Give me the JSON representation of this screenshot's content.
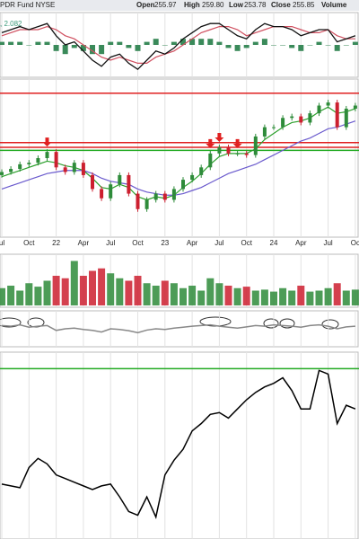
{
  "header": {
    "name": "PDR Fund NYSE",
    "open_label": "Open",
    "open": "255.97",
    "high_label": "High",
    "high": "259.80",
    "low_label": "Low",
    "low": "253.78",
    "close_label": "Close",
    "close": "255.85",
    "volume_label": "Volume",
    "macd_label": ", 2.082"
  },
  "chart_data": [
    {
      "type": "candlestick",
      "categories": [
        "ul",
        null,
        null,
        "Oct",
        null,
        null,
        "22",
        null,
        null,
        "Apr",
        null,
        null,
        "Jul",
        null,
        null,
        "Oct",
        null,
        null,
        "23",
        null,
        null,
        "Apr",
        null,
        null,
        "Jul",
        null,
        null,
        "Oct",
        null,
        null,
        "24",
        null,
        null,
        "Apr",
        null,
        null,
        "Jul",
        null,
        null,
        "Oc"
      ],
      "open": [
        39,
        41,
        43,
        46,
        47,
        50,
        54,
        44,
        41,
        47,
        39,
        30,
        24,
        33,
        39,
        27,
        17,
        23,
        27,
        23,
        30,
        36,
        39,
        44,
        53,
        57,
        53,
        53,
        52,
        64,
        70,
        70,
        76,
        77,
        73,
        79,
        84,
        86,
        70,
        82
      ],
      "close": [
        41,
        43,
        46,
        47,
        50,
        54,
        44,
        41,
        47,
        39,
        30,
        24,
        33,
        39,
        27,
        17,
        23,
        27,
        23,
        30,
        36,
        39,
        44,
        53,
        57,
        53,
        53,
        52,
        64,
        70,
        70,
        76,
        77,
        73,
        79,
        84,
        86,
        70,
        82,
        84
      ],
      "up_color": "#2e8b3a",
      "down_color": "#cc1f2f",
      "series": [
        {
          "color": "#2ca02c",
          "values": [
            38,
            40,
            42,
            44,
            46,
            48,
            47,
            45,
            44,
            42,
            37,
            31,
            30,
            33,
            31,
            25,
            23,
            25,
            24,
            26,
            31,
            35,
            40,
            46,
            51,
            53,
            53,
            53,
            56,
            62,
            66,
            70,
            73,
            74,
            76,
            80,
            83,
            79,
            80,
            82
          ]
        },
        {
          "color": "#6a5acd",
          "values": [
            30,
            32,
            34,
            36,
            38,
            40,
            41,
            42,
            42,
            42,
            40,
            37,
            35,
            34,
            33,
            30,
            28,
            27,
            26,
            26,
            27,
            29,
            31,
            34,
            37,
            40,
            42,
            44,
            46,
            49,
            52,
            55,
            58,
            61,
            63,
            66,
            69,
            70,
            72,
            74
          ]
        }
      ],
      "hlines": [
        {
          "value": 92,
          "color": "#e02020"
        },
        {
          "value": 60,
          "color": "#e02020"
        },
        {
          "value": 57,
          "color": "#e02020"
        },
        {
          "value": 55,
          "color": "#22aa22"
        }
      ],
      "arrows": [
        5,
        23,
        24,
        26
      ],
      "arrow_color": "#e02020",
      "ylim": [
        0,
        100
      ]
    },
    {
      "type": "macd",
      "macd": [
        4,
        5,
        6,
        5,
        6,
        7,
        3,
        0,
        1,
        -2,
        -5,
        -7,
        -4,
        -3,
        -6,
        -8,
        -5,
        -2,
        -3,
        -1,
        2,
        4,
        6,
        7,
        7,
        5,
        3,
        2,
        5,
        7,
        6,
        6,
        5,
        3,
        4,
        5,
        5,
        1,
        2,
        3
      ],
      "signal": [
        3,
        4,
        5,
        5,
        5,
        6,
        5,
        3,
        2,
        0,
        -2,
        -4,
        -5,
        -4,
        -5,
        -6,
        -6,
        -4,
        -3,
        -2,
        0,
        2,
        4,
        5,
        6,
        6,
        5,
        3,
        4,
        5,
        6,
        6,
        6,
        5,
        4,
        4,
        5,
        3,
        2,
        2
      ],
      "histogram": [
        1,
        1,
        1,
        0,
        1,
        1,
        -2,
        -3,
        -1,
        -2,
        -3,
        -3,
        1,
        1,
        -1,
        -2,
        1,
        2,
        0,
        1,
        2,
        2,
        2,
        2,
        1,
        -1,
        -2,
        -1,
        1,
        2,
        0,
        0,
        -1,
        -2,
        0,
        1,
        0,
        -2,
        0,
        1
      ],
      "macd_color": "#111",
      "signal_color": "#d05060",
      "hist_color": "#3a8a5a",
      "ylim": [
        -10,
        10
      ]
    },
    {
      "type": "bar",
      "values": [
        35,
        40,
        30,
        45,
        38,
        50,
        60,
        55,
        90,
        60,
        70,
        75,
        65,
        55,
        50,
        60,
        45,
        40,
        50,
        45,
        35,
        40,
        30,
        55,
        45,
        40,
        35,
        38,
        30,
        32,
        28,
        35,
        30,
        40,
        28,
        30,
        35,
        45,
        30,
        32
      ],
      "ylim": [
        0,
        100
      ]
    },
    {
      "type": "line",
      "values": [
        60,
        58,
        62,
        55,
        58,
        60,
        45,
        50,
        52,
        48,
        45,
        40,
        50,
        48,
        44,
        38,
        46,
        50,
        48,
        52,
        55,
        58,
        60,
        62,
        58,
        55,
        52,
        56,
        60,
        58,
        62,
        60,
        58,
        55,
        60,
        62,
        58,
        50,
        56,
        58
      ],
      "color": "#888",
      "ylim": [
        0,
        100
      ]
    },
    {
      "type": "line",
      "values": [
        29,
        28,
        27,
        38,
        43,
        40,
        34,
        32,
        30,
        28,
        26,
        28,
        29,
        22,
        14,
        12,
        22,
        11,
        34,
        42,
        48,
        58,
        62,
        67,
        68,
        65,
        70,
        75,
        79,
        82,
        84,
        87,
        80,
        70,
        70,
        91,
        89,
        62,
        72,
        70
      ],
      "color": "#000",
      "ylim": [
        0,
        100
      ],
      "hlines": [
        {
          "value": 92,
          "color": "#22aa22"
        }
      ]
    }
  ]
}
